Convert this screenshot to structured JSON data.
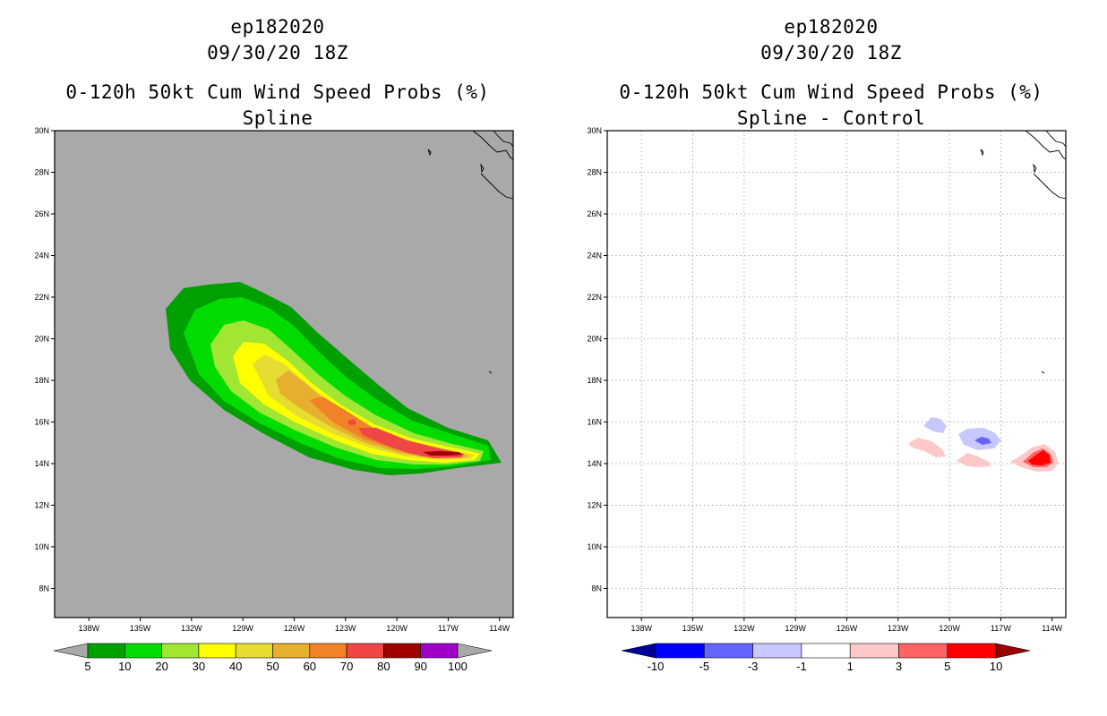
{
  "panels": [
    {
      "storm_id": "ep182020",
      "datetime": "09/30/20 18Z",
      "product": "0-120h 50kt Cum Wind Speed Probs (%)",
      "subtitle": "Spline"
    },
    {
      "storm_id": "ep182020",
      "datetime": "09/30/20 18Z",
      "product": "0-120h 50kt Cum Wind Speed Probs (%)",
      "subtitle": "Spline - Control"
    }
  ],
  "map": {
    "lat_labels": [
      "30N",
      "28N",
      "26N",
      "24N",
      "22N",
      "20N",
      "18N",
      "16N",
      "14N",
      "12N",
      "10N",
      "8N"
    ],
    "lat_values": [
      30,
      28,
      26,
      24,
      22,
      20,
      18,
      16,
      14,
      12,
      10,
      8
    ],
    "lon_labels": [
      "138W",
      "135W",
      "132W",
      "129W",
      "126W",
      "123W",
      "120W",
      "117W",
      "114W"
    ],
    "lon_values": [
      -138,
      -135,
      -132,
      -129,
      -126,
      -123,
      -120,
      -117,
      -114
    ],
    "lat_range": [
      6.6,
      30
    ],
    "lon_range": [
      -140,
      -113.2
    ],
    "land_color": "#a9a9a9"
  },
  "legend_left": {
    "labels": [
      "5",
      "10",
      "20",
      "30",
      "40",
      "50",
      "60",
      "70",
      "80",
      "90",
      "100"
    ],
    "colors": [
      "#00a000",
      "#00dc00",
      "#a0e632",
      "#ffff00",
      "#e6dc32",
      "#e6af2d",
      "#f08228",
      "#f04646",
      "#a00000",
      "#a000c8"
    ],
    "under_color": "#a9a9a9",
    "over_color": "#a9a9a9"
  },
  "legend_right": {
    "labels": [
      "-10",
      "-5",
      "-3",
      "-1",
      "1",
      "3",
      "5",
      "10"
    ],
    "colors": [
      "#0000ff",
      "#6464ff",
      "#c8c8ff",
      "#ffffff",
      "#ffc8c8",
      "#ff6464",
      "#ff0000"
    ],
    "under_color": "#00009b",
    "over_color": "#9b0000"
  }
}
